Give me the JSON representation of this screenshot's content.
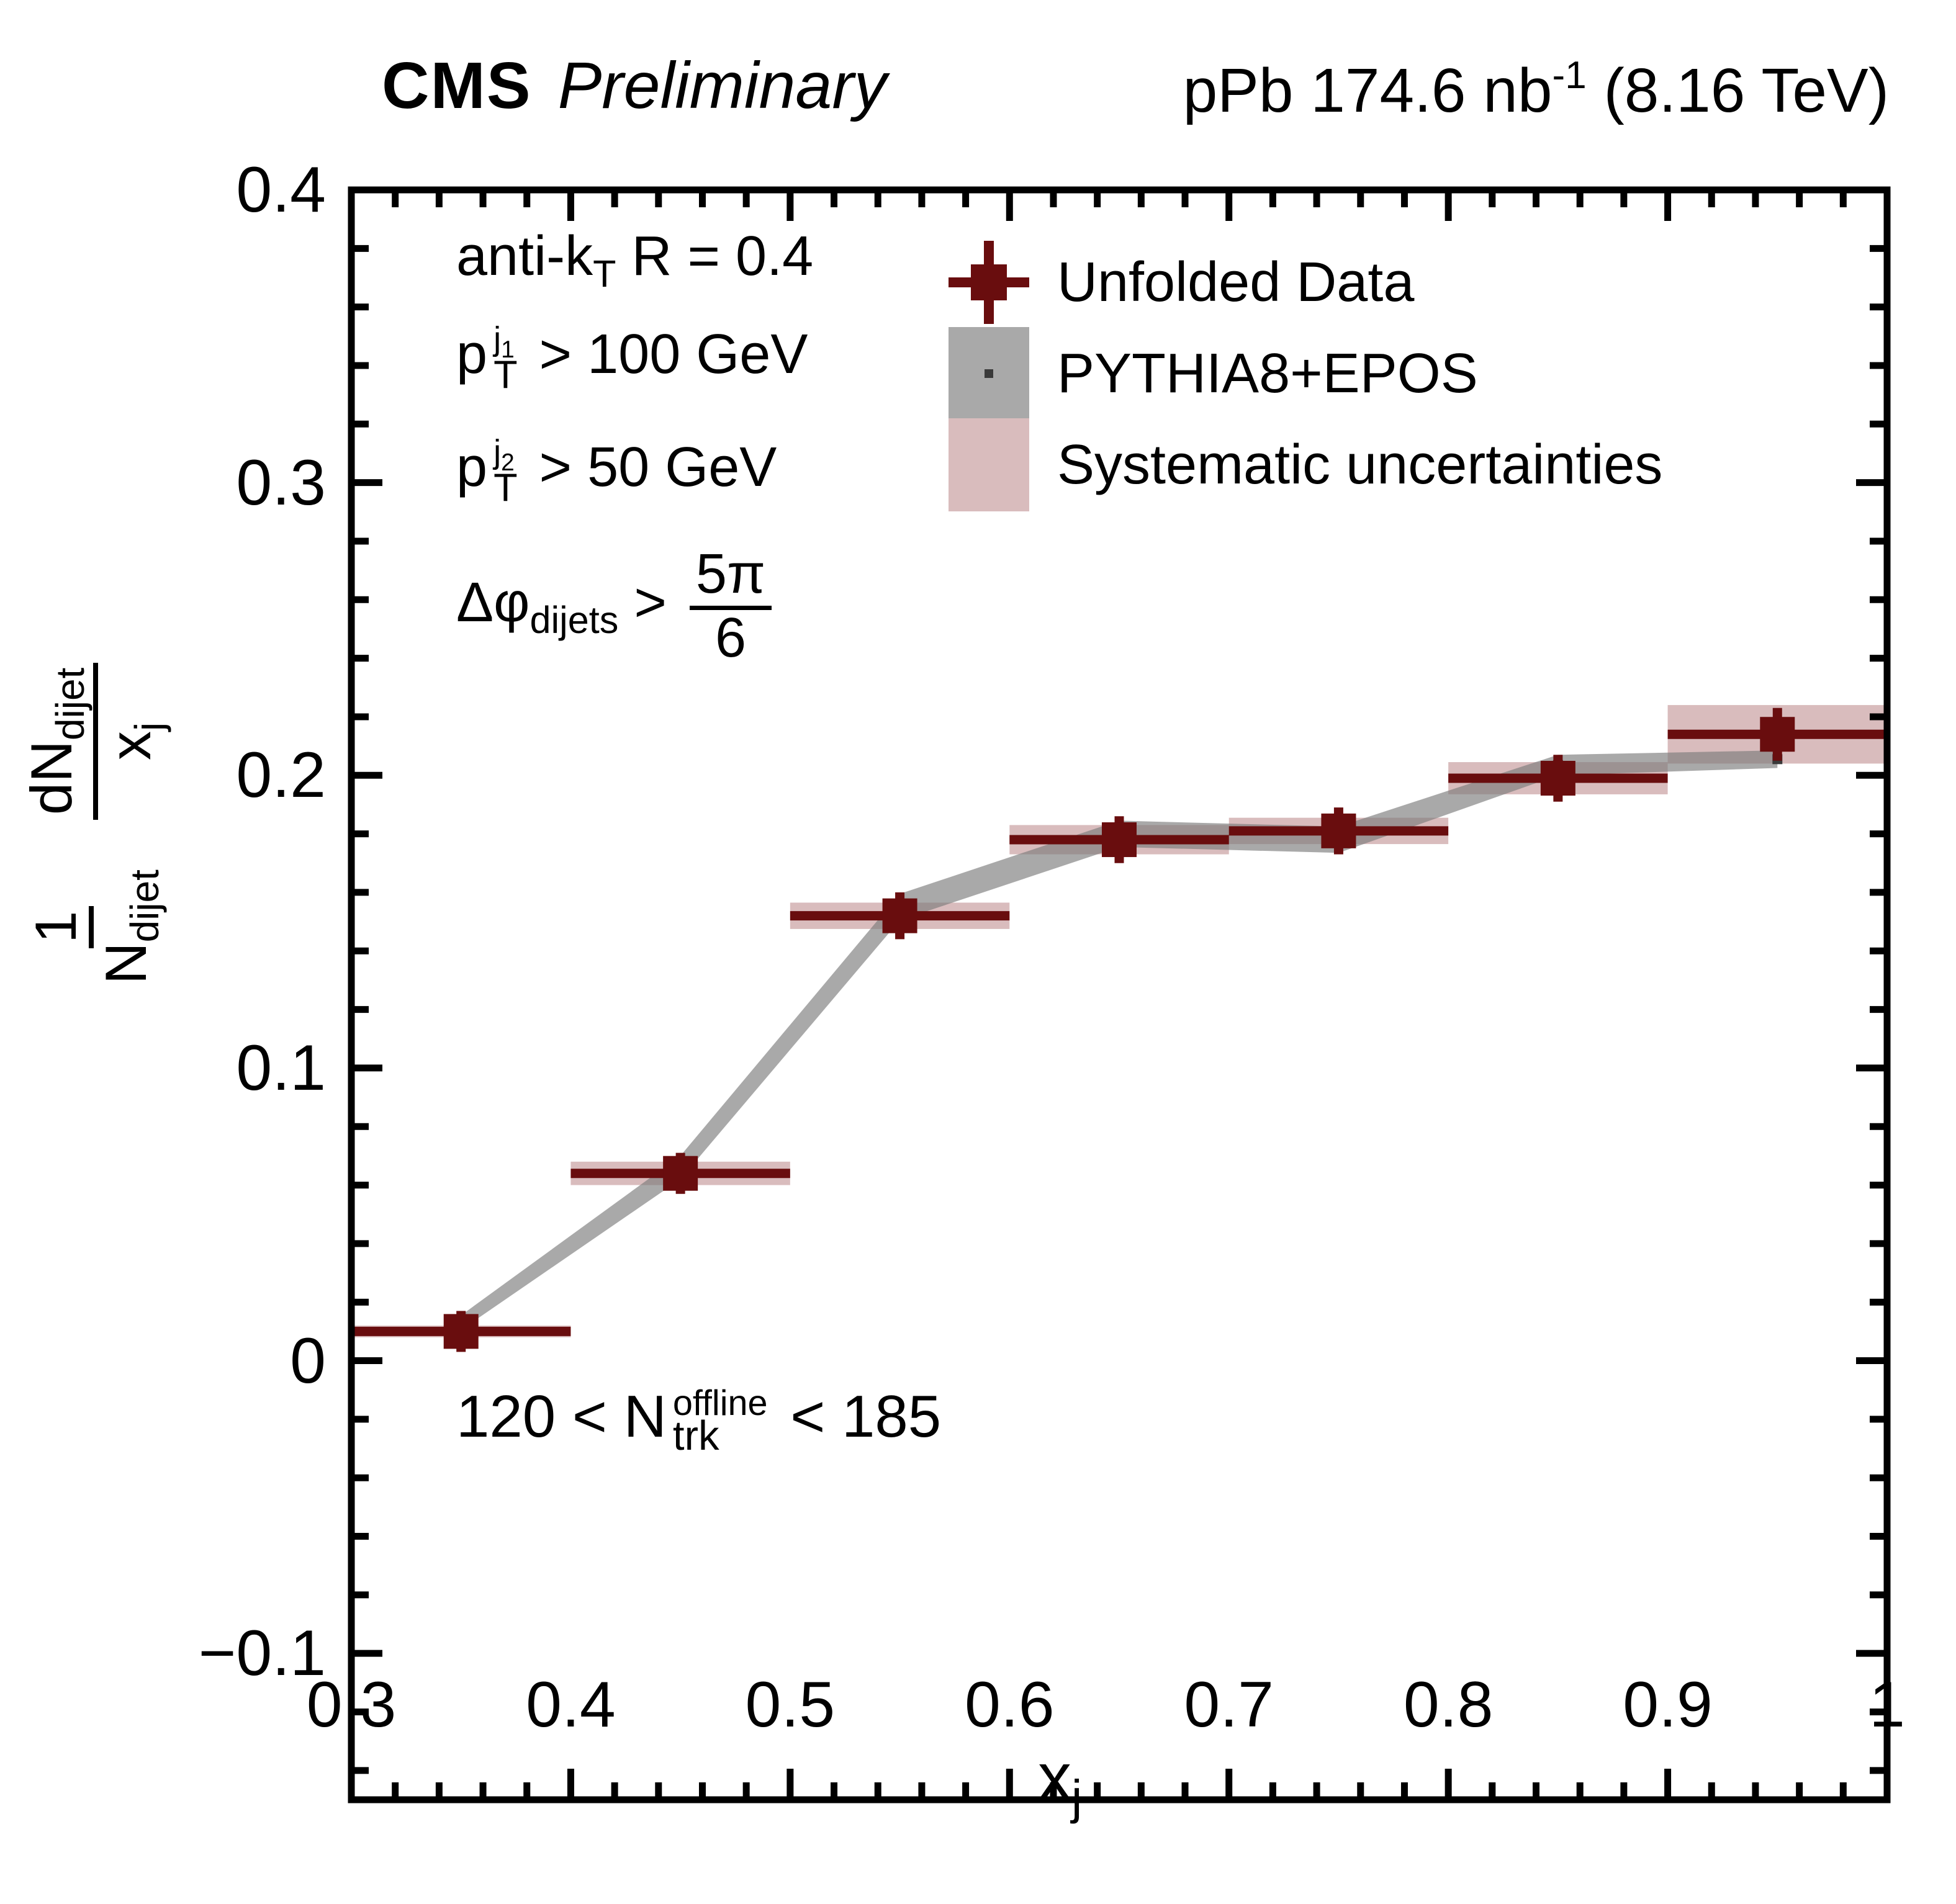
{
  "header": {
    "experiment": "CMS",
    "status": "Preliminary",
    "lumi_prefix": "pPb 174.6 nb",
    "lumi_sup": "-1",
    "lumi_suffix": " (8.16 TeV)"
  },
  "legend": {
    "unfolded_label": "Unfolded Data",
    "pythia_label": "PYTHIA8+EPOS",
    "syst_label": "Systematic uncertainties"
  },
  "annotations": {
    "antikt": {
      "pre": "anti-k",
      "sub": "T",
      "post": " R = 0.4"
    },
    "pt1": {
      "base": "p",
      "sup": "j",
      "supsub": "1",
      "sub": "T",
      "post": " > 100 GeV"
    },
    "pt2": {
      "base": "p",
      "sup": "j",
      "supsub": "2",
      "sub": "T",
      "post": " > 50 GeV"
    },
    "dphi": {
      "pre": "Δφ",
      "sub": "dijets",
      "mid": " > ",
      "num": "5π",
      "den": "6"
    },
    "ntrk": {
      "pre": "120 < N",
      "sup": "offline",
      "sub": "trk",
      "post": " < 185"
    }
  },
  "axes": {
    "x": {
      "title_base": "x",
      "title_sub": "j"
    },
    "y": {
      "frac1_num": "1",
      "frac1_den_base": "N",
      "frac1_den_sub": "dijet",
      "frac2_num_base": "dN",
      "frac2_num_sub": "dijet",
      "frac2_den_base": "x",
      "frac2_den_sub": "j"
    }
  },
  "colors": {
    "marker": "#690d0e",
    "syst_band": "#d9bcbd",
    "mc_band": "rgba(125,125,125,0.66)",
    "mc_dot": "#3a3a3a",
    "frame": "#000000"
  },
  "chart_data": {
    "type": "scatter",
    "title": "CMS Preliminary  pPb 174.6 nb^-1 (8.16 TeV)",
    "xlabel": "x_j",
    "ylabel": "(1/N_dijet) dN_dijet/x_j",
    "xlim": [
      0.3,
      1.0
    ],
    "ylim": [
      -0.15,
      0.4
    ],
    "grid": false,
    "legend_position": "top-right-inside",
    "minor_step": 0.02,
    "x_ticks": [
      {
        "v": 0.3,
        "label": "0.3"
      },
      {
        "v": 0.4,
        "label": "0.4"
      },
      {
        "v": 0.5,
        "label": "0.5"
      },
      {
        "v": 0.6,
        "label": "0.6"
      },
      {
        "v": 0.7,
        "label": "0.7"
      },
      {
        "v": 0.8,
        "label": "0.8"
      },
      {
        "v": 0.9,
        "label": "0.9"
      },
      {
        "v": 1.0,
        "label": "1"
      }
    ],
    "y_ticks": [
      {
        "v": 0.4,
        "label": "0.4"
      },
      {
        "v": 0.3,
        "label": "0.3"
      },
      {
        "v": 0.2,
        "label": "0.2"
      },
      {
        "v": 0.1,
        "label": "0.1"
      },
      {
        "v": 0.0,
        "label": "0"
      },
      {
        "v": -0.1,
        "label": "−0.1"
      }
    ],
    "bins": [
      [
        0.3,
        0.4
      ],
      [
        0.4,
        0.5
      ],
      [
        0.5,
        0.6
      ],
      [
        0.6,
        0.7
      ],
      [
        0.7,
        0.8
      ],
      [
        0.8,
        0.9
      ],
      [
        0.9,
        1.0
      ]
    ],
    "series": [
      {
        "name": "Unfolded Data",
        "type": "errorbar",
        "x": [
          0.35,
          0.45,
          0.55,
          0.65,
          0.75,
          0.85,
          0.95
        ],
        "y": [
          0.01,
          0.064,
          0.152,
          0.178,
          0.181,
          0.199,
          0.214
        ],
        "stat": [
          0.007,
          0.007,
          0.008,
          0.008,
          0.008,
          0.008,
          0.009
        ],
        "syst": [
          0.002,
          0.004,
          0.0045,
          0.005,
          0.0045,
          0.0055,
          0.01
        ]
      },
      {
        "name": "PYTHIA8+EPOS",
        "type": "band",
        "x": [
          0.35,
          0.45,
          0.55,
          0.65,
          0.75,
          0.85,
          0.95
        ],
        "y": [
          0.013,
          0.066,
          0.155,
          0.18,
          0.178,
          0.2035,
          0.2055
        ],
        "half_width": [
          0.0025,
          0.004,
          0.0045,
          0.0045,
          0.0045,
          0.0035,
          0.003
        ]
      }
    ]
  }
}
